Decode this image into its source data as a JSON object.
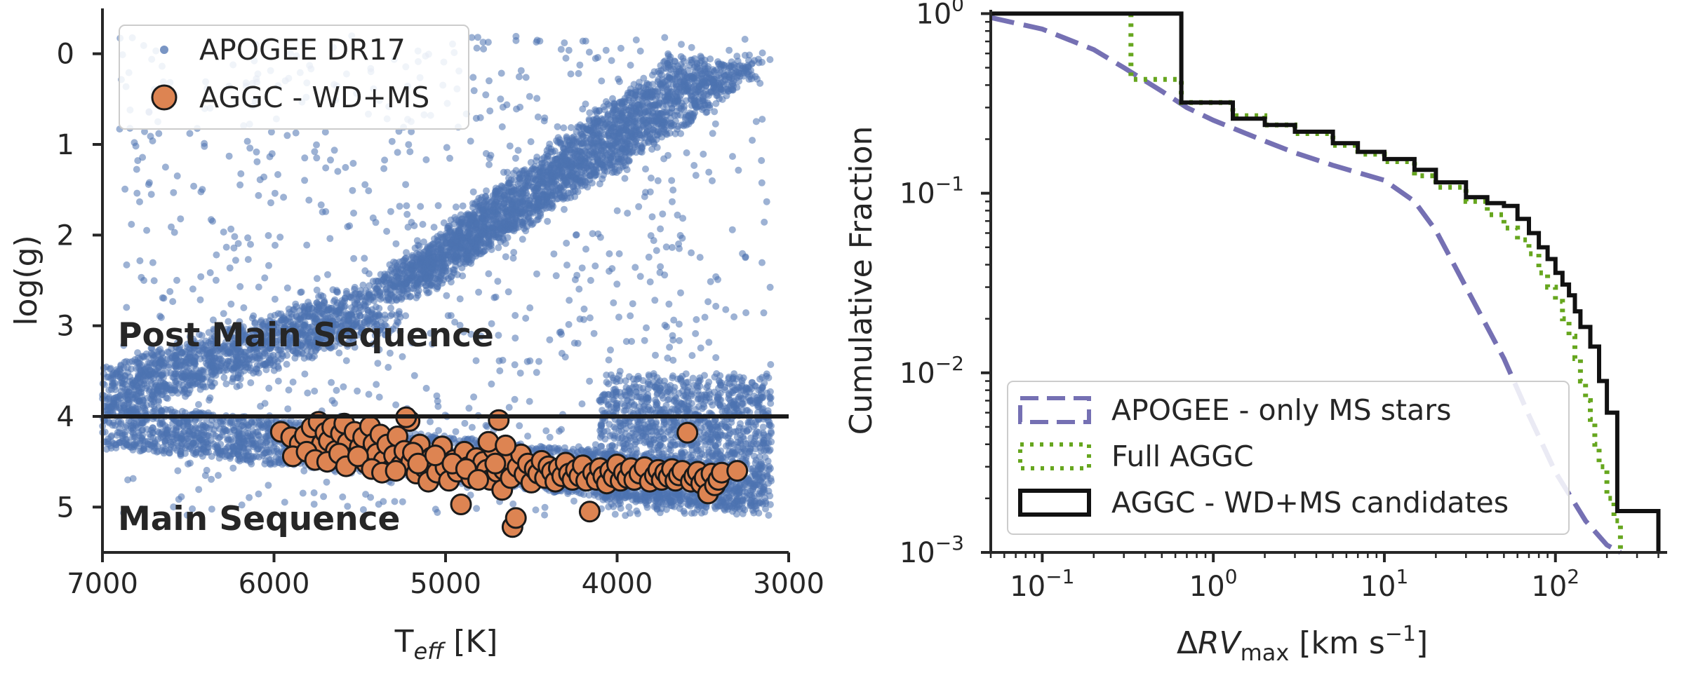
{
  "chart_data": [
    {
      "type": "scatter",
      "xlabel": {
        "main": "T",
        "sub": "eff",
        "unit": " [K]"
      },
      "ylabel": "log(g)",
      "xlim": [
        7000,
        3000
      ],
      "ylim": [
        5.5,
        -0.5
      ],
      "x_inverted": true,
      "y_inverted": true,
      "xticks": [
        7000,
        6000,
        5000,
        4000,
        3000
      ],
      "xtick_labels": [
        "7000",
        "6000",
        "5000",
        "4000",
        "3000"
      ],
      "yticks": [
        0,
        1,
        2,
        3,
        4,
        5
      ],
      "ytick_labels": [
        "0",
        "1",
        "2",
        "3",
        "4",
        "5"
      ],
      "hline": {
        "y": 4,
        "color": "#1a1a1a"
      },
      "annotations": [
        {
          "text": "Post Main Sequence",
          "x": 6900,
          "y": 3.15
        },
        {
          "text": "Main Sequence",
          "x": 6900,
          "y": 5.15
        }
      ],
      "legend": {
        "placement": "top-left"
      },
      "series": [
        {
          "name": "APOGEE DR17",
          "color": "#4c72b0",
          "marker": "small-dot",
          "density_regions": [
            {
              "description": "red giant branch",
              "from": [
                5300,
                2.6
              ],
              "to": [
                3400,
                0.1
              ],
              "width_teff": 500
            },
            {
              "description": "subgiant branch",
              "from": [
                7000,
                3.75
              ],
              "to": [
                5400,
                2.8
              ],
              "width_teff": 350
            },
            {
              "description": "main sequence",
              "from": [
                7000,
                4.1
              ],
              "to": [
                3200,
                4.8
              ],
              "width_logg": 0.5
            },
            {
              "description": "cool dwarfs",
              "from": [
                4100,
                3.6
              ],
              "to": [
                3100,
                5.0
              ],
              "width_logg": 0.7
            }
          ]
        },
        {
          "name": "AGGC - WD+MS",
          "color": "#dd8452",
          "edgecolor": "#1a1a1a",
          "marker": "circle",
          "points": [
            [
              5960,
              4.17
            ],
            [
              5900,
              4.23
            ],
            [
              5850,
              4.3
            ],
            [
              5820,
              4.21
            ],
            [
              5780,
              4.12
            ],
            [
              5740,
              4.06
            ],
            [
              5720,
              4.3
            ],
            [
              5700,
              4.18
            ],
            [
              5680,
              4.27
            ],
            [
              5660,
              4.12
            ],
            [
              5640,
              4.38
            ],
            [
              5610,
              4.19
            ],
            [
              5590,
              4.08
            ],
            [
              5570,
              4.29
            ],
            [
              5550,
              4.46
            ],
            [
              5530,
              4.17
            ],
            [
              5500,
              4.34
            ],
            [
              5480,
              4.23
            ],
            [
              5460,
              4.52
            ],
            [
              5440,
              4.11
            ],
            [
              5420,
              4.3
            ],
            [
              5400,
              4.41
            ],
            [
              5380,
              4.2
            ],
            [
              5360,
              4.49
            ],
            [
              5340,
              4.31
            ],
            [
              5320,
              4.59
            ],
            [
              5300,
              4.43
            ],
            [
              5280,
              4.22
            ],
            [
              5260,
              4.54
            ],
            [
              5240,
              4.38
            ],
            [
              5210,
              4.05
            ],
            [
              5200,
              4.5
            ],
            [
              5170,
              4.63
            ],
            [
              5150,
              4.31
            ],
            [
              5120,
              4.57
            ],
            [
              5100,
              4.72
            ],
            [
              5080,
              4.45
            ],
            [
              5050,
              4.62
            ],
            [
              5020,
              4.33
            ],
            [
              5000,
              4.56
            ],
            [
              4980,
              4.71
            ],
            [
              4950,
              4.48
            ],
            [
              4930,
              4.61
            ],
            [
              4910,
              4.97
            ],
            [
              4890,
              4.39
            ],
            [
              4870,
              4.56
            ],
            [
              4850,
              4.68
            ],
            [
              4820,
              4.46
            ],
            [
              4800,
              4.63
            ],
            [
              4780,
              4.5
            ],
            [
              4760,
              4.59
            ],
            [
              4740,
              4.7
            ],
            [
              4720,
              4.36
            ],
            [
              4700,
              4.61
            ],
            [
              4690,
              4.04
            ],
            [
              4670,
              4.81
            ],
            [
              4660,
              4.59
            ],
            [
              4640,
              4.47
            ],
            [
              4620,
              4.68
            ],
            [
              4610,
              5.22
            ],
            [
              4590,
              5.12
            ],
            [
              4580,
              4.56
            ],
            [
              4560,
              4.42
            ],
            [
              4540,
              4.64
            ],
            [
              4520,
              4.52
            ],
            [
              4500,
              4.73
            ],
            [
              4480,
              4.58
            ],
            [
              4460,
              4.63
            ],
            [
              4440,
              4.49
            ],
            [
              4420,
              4.68
            ],
            [
              4400,
              4.55
            ],
            [
              4380,
              4.61
            ],
            [
              4360,
              4.72
            ],
            [
              4340,
              4.57
            ],
            [
              4320,
              4.66
            ],
            [
              4300,
              4.51
            ],
            [
              4280,
              4.63
            ],
            [
              4260,
              4.7
            ],
            [
              4240,
              4.59
            ],
            [
              4220,
              4.66
            ],
            [
              4200,
              4.54
            ],
            [
              4180,
              4.71
            ],
            [
              4160,
              5.05
            ],
            [
              4140,
              4.62
            ],
            [
              4120,
              4.7
            ],
            [
              4100,
              4.57
            ],
            [
              4080,
              4.66
            ],
            [
              4060,
              4.74
            ],
            [
              4040,
              4.6
            ],
            [
              4020,
              4.67
            ],
            [
              4000,
              4.53
            ],
            [
              3980,
              4.71
            ],
            [
              3960,
              4.62
            ],
            [
              3940,
              4.68
            ],
            [
              3920,
              4.57
            ],
            [
              3900,
              4.7
            ],
            [
              3870,
              4.63
            ],
            [
              3840,
              4.56
            ],
            [
              3810,
              4.72
            ],
            [
              3780,
              4.65
            ],
            [
              3760,
              4.59
            ],
            [
              3740,
              4.7
            ],
            [
              3720,
              4.62
            ],
            [
              3700,
              4.67
            ],
            [
              3680,
              4.58
            ],
            [
              3660,
              4.71
            ],
            [
              3640,
              4.65
            ],
            [
              3620,
              4.6
            ],
            [
              3590,
              4.18
            ],
            [
              3570,
              4.72
            ],
            [
              3550,
              4.66
            ],
            [
              3530,
              4.61
            ],
            [
              3510,
              4.74
            ],
            [
              3490,
              4.68
            ],
            [
              3470,
              4.85
            ],
            [
              3450,
              4.63
            ],
            [
              3430,
              4.76
            ],
            [
              3410,
              4.7
            ],
            [
              3390,
              4.62
            ],
            [
              3300,
              4.6
            ],
            [
              5890,
              4.44
            ],
            [
              5810,
              4.39
            ],
            [
              5760,
              4.48
            ],
            [
              5690,
              4.5
            ],
            [
              5620,
              4.41
            ],
            [
              5580,
              4.55
            ],
            [
              5510,
              4.44
            ],
            [
              5430,
              4.58
            ],
            [
              5370,
              4.62
            ],
            [
              5290,
              4.6
            ],
            [
              5230,
              4.01
            ],
            [
              5190,
              4.4
            ],
            [
              5160,
              4.52
            ],
            [
              5060,
              4.43
            ],
            [
              4960,
              4.52
            ],
            [
              4880,
              4.58
            ],
            [
              4810,
              4.7
            ],
            [
              4750,
              4.28
            ],
            [
              4710,
              4.52
            ],
            [
              4650,
              4.32
            ]
          ]
        }
      ]
    },
    {
      "type": "line",
      "plot_style": "step-cdf",
      "xlabel": {
        "delta": "Δ",
        "main": "RV",
        "sub": "max",
        "unit": " [km s",
        "unit_exp": "−1",
        "unit_end": "]"
      },
      "ylabel": "Cumulative Fraction",
      "xscale": "log",
      "yscale": "log",
      "xlim": [
        0.05,
        450
      ],
      "ylim": [
        0.001,
        1.05
      ],
      "xticks": [
        0.1,
        1,
        10,
        100
      ],
      "xtick_labels": [
        {
          "base": "10",
          "exp": "−1"
        },
        {
          "base": "10",
          "exp": "0"
        },
        {
          "base": "10",
          "exp": "1"
        },
        {
          "base": "10",
          "exp": "2"
        }
      ],
      "yticks": [
        0.001,
        0.01,
        0.1,
        1
      ],
      "ytick_labels": [
        {
          "base": "10",
          "exp": "−3"
        },
        {
          "base": "10",
          "exp": "−2"
        },
        {
          "base": "10",
          "exp": "−1"
        },
        {
          "base": "10",
          "exp": "0"
        }
      ],
      "legend": {
        "placement": "bottom-left"
      },
      "series": [
        {
          "name": "APOGEE - only MS stars",
          "color": "#7570b3",
          "style": "dashed",
          "x": [
            0.05,
            0.1,
            0.2,
            0.3,
            0.5,
            0.7,
            1,
            2,
            3,
            5,
            10,
            15,
            20,
            30,
            50,
            70,
            100,
            150,
            200,
            240
          ],
          "y": [
            0.95,
            0.82,
            0.63,
            0.5,
            0.37,
            0.3,
            0.255,
            0.195,
            0.168,
            0.143,
            0.118,
            0.09,
            0.062,
            0.03,
            0.012,
            0.0058,
            0.0028,
            0.0015,
            0.0011,
            0.001
          ]
        },
        {
          "name": "Full AGGC",
          "color": "#66a61e",
          "style": "dotted",
          "x": [
            0.33,
            0.33,
            0.65,
            0.65,
            1.3,
            1.3,
            2,
            3,
            5,
            7,
            10,
            15,
            20,
            30,
            40,
            50,
            60,
            70,
            80,
            90,
            100,
            110,
            120,
            130,
            140,
            150,
            160,
            170,
            180,
            200,
            220,
            240
          ],
          "y": [
            1.0,
            0.43,
            0.43,
            0.32,
            0.32,
            0.27,
            0.24,
            0.215,
            0.185,
            0.165,
            0.15,
            0.125,
            0.108,
            0.09,
            0.076,
            0.064,
            0.055,
            0.046,
            0.036,
            0.03,
            0.025,
            0.02,
            0.016,
            0.012,
            0.009,
            0.007,
            0.0055,
            0.004,
            0.003,
            0.002,
            0.0015,
            0.001
          ]
        },
        {
          "name": "AGGC - WD+MS candidates",
          "color": "#111111",
          "style": "solid",
          "x": [
            0.05,
            0.65,
            0.65,
            1.3,
            1.3,
            2,
            3,
            5,
            7,
            10,
            15,
            20,
            30,
            40,
            50,
            60,
            70,
            80,
            90,
            100,
            110,
            120,
            130,
            140,
            160,
            180,
            200,
            230,
            230,
            400
          ],
          "y": [
            1.0,
            1.0,
            0.32,
            0.32,
            0.26,
            0.24,
            0.22,
            0.19,
            0.17,
            0.155,
            0.135,
            0.115,
            0.095,
            0.088,
            0.085,
            0.072,
            0.06,
            0.05,
            0.043,
            0.036,
            0.031,
            0.027,
            0.022,
            0.018,
            0.014,
            0.009,
            0.006,
            0.003,
            0.0017,
            0.0017
          ]
        }
      ]
    }
  ]
}
